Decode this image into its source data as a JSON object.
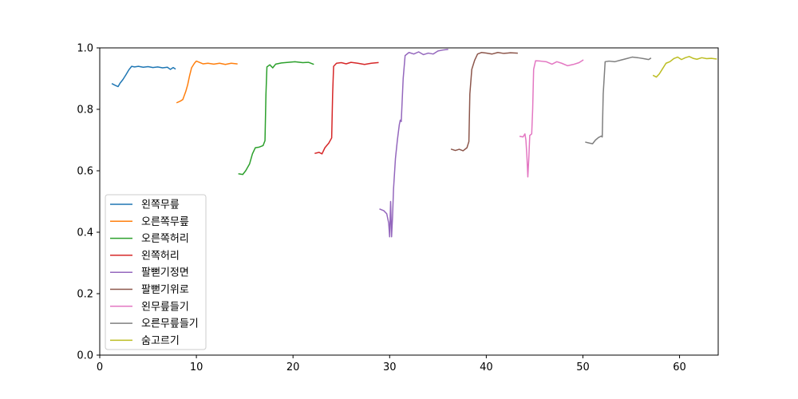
{
  "chart_data": {
    "type": "line",
    "title": "",
    "xlabel": "",
    "ylabel": "",
    "xlim": [
      0,
      64
    ],
    "ylim": [
      0.0,
      1.0
    ],
    "x_ticks": [
      0,
      10,
      20,
      30,
      40,
      50,
      60
    ],
    "x_tick_labels": [
      "0",
      "10",
      "20",
      "30",
      "40",
      "50",
      "60"
    ],
    "y_ticks": [
      0.0,
      0.2,
      0.4,
      0.6,
      0.8,
      1.0
    ],
    "y_tick_labels": [
      "0.0",
      "0.2",
      "0.4",
      "0.6",
      "0.8",
      "1.0"
    ],
    "grid": false,
    "legend_position": "lower-left",
    "series": [
      {
        "name": "왼쪽무릎",
        "color": "#1f77b4",
        "points": [
          [
            1.3,
            0.883
          ],
          [
            1.6,
            0.878
          ],
          [
            1.9,
            0.874
          ],
          [
            2.1,
            0.885
          ],
          [
            2.4,
            0.897
          ],
          [
            2.7,
            0.912
          ],
          [
            3.0,
            0.928
          ],
          [
            3.3,
            0.94
          ],
          [
            3.6,
            0.938
          ],
          [
            4.0,
            0.94
          ],
          [
            4.5,
            0.937
          ],
          [
            5.0,
            0.939
          ],
          [
            5.5,
            0.936
          ],
          [
            6.0,
            0.938
          ],
          [
            6.5,
            0.935
          ],
          [
            7.0,
            0.937
          ],
          [
            7.3,
            0.93
          ],
          [
            7.6,
            0.936
          ],
          [
            7.8,
            0.932
          ]
        ]
      },
      {
        "name": "오른쪽무릎",
        "color": "#ff7f0e",
        "points": [
          [
            8.0,
            0.822
          ],
          [
            8.3,
            0.826
          ],
          [
            8.6,
            0.832
          ],
          [
            8.9,
            0.858
          ],
          [
            9.1,
            0.88
          ],
          [
            9.3,
            0.91
          ],
          [
            9.5,
            0.935
          ],
          [
            9.8,
            0.95
          ],
          [
            10.0,
            0.957
          ],
          [
            10.3,
            0.953
          ],
          [
            10.7,
            0.948
          ],
          [
            11.2,
            0.95
          ],
          [
            11.8,
            0.947
          ],
          [
            12.4,
            0.95
          ],
          [
            13.0,
            0.946
          ],
          [
            13.6,
            0.95
          ],
          [
            14.2,
            0.948
          ]
        ]
      },
      {
        "name": "오른쪽허리",
        "color": "#2ca02c",
        "points": [
          [
            14.4,
            0.59
          ],
          [
            14.8,
            0.588
          ],
          [
            15.1,
            0.6
          ],
          [
            15.5,
            0.622
          ],
          [
            15.8,
            0.655
          ],
          [
            16.1,
            0.675
          ],
          [
            16.5,
            0.677
          ],
          [
            16.9,
            0.682
          ],
          [
            17.1,
            0.698
          ],
          [
            17.2,
            0.85
          ],
          [
            17.3,
            0.938
          ],
          [
            17.6,
            0.945
          ],
          [
            17.9,
            0.935
          ],
          [
            18.2,
            0.947
          ],
          [
            18.8,
            0.951
          ],
          [
            19.5,
            0.953
          ],
          [
            20.2,
            0.955
          ],
          [
            21.0,
            0.952
          ],
          [
            21.6,
            0.953
          ],
          [
            22.1,
            0.947
          ]
        ]
      },
      {
        "name": "왼쪽허리",
        "color": "#d62728",
        "points": [
          [
            22.3,
            0.657
          ],
          [
            22.7,
            0.66
          ],
          [
            23.0,
            0.655
          ],
          [
            23.3,
            0.675
          ],
          [
            23.7,
            0.69
          ],
          [
            24.0,
            0.707
          ],
          [
            24.1,
            0.85
          ],
          [
            24.2,
            0.94
          ],
          [
            24.5,
            0.95
          ],
          [
            25.0,
            0.952
          ],
          [
            25.5,
            0.948
          ],
          [
            26.0,
            0.953
          ],
          [
            26.7,
            0.95
          ],
          [
            27.4,
            0.946
          ],
          [
            28.1,
            0.95
          ],
          [
            28.8,
            0.952
          ]
        ]
      },
      {
        "name": "팔뻗기정면",
        "color": "#9467bd",
        "points": [
          [
            29.0,
            0.475
          ],
          [
            29.4,
            0.47
          ],
          [
            29.7,
            0.46
          ],
          [
            29.9,
            0.43
          ],
          [
            30.0,
            0.385
          ],
          [
            30.1,
            0.5
          ],
          [
            30.2,
            0.385
          ],
          [
            30.3,
            0.45
          ],
          [
            30.4,
            0.54
          ],
          [
            30.6,
            0.64
          ],
          [
            30.8,
            0.7
          ],
          [
            31.0,
            0.75
          ],
          [
            31.1,
            0.765
          ],
          [
            31.2,
            0.76
          ],
          [
            31.4,
            0.9
          ],
          [
            31.6,
            0.975
          ],
          [
            32.0,
            0.985
          ],
          [
            32.5,
            0.98
          ],
          [
            33.0,
            0.987
          ],
          [
            33.5,
            0.978
          ],
          [
            34.0,
            0.983
          ],
          [
            34.5,
            0.98
          ],
          [
            35.0,
            0.99
          ],
          [
            35.5,
            0.993
          ],
          [
            36.0,
            0.995
          ]
        ]
      },
      {
        "name": "팔뻗기위로",
        "color": "#8c564b",
        "points": [
          [
            36.4,
            0.67
          ],
          [
            36.8,
            0.666
          ],
          [
            37.2,
            0.67
          ],
          [
            37.6,
            0.665
          ],
          [
            38.0,
            0.675
          ],
          [
            38.2,
            0.695
          ],
          [
            38.3,
            0.85
          ],
          [
            38.5,
            0.93
          ],
          [
            38.8,
            0.96
          ],
          [
            39.1,
            0.98
          ],
          [
            39.5,
            0.985
          ],
          [
            40.0,
            0.983
          ],
          [
            40.6,
            0.98
          ],
          [
            41.2,
            0.985
          ],
          [
            41.8,
            0.982
          ],
          [
            42.5,
            0.984
          ],
          [
            43.2,
            0.983
          ]
        ]
      },
      {
        "name": "왼무릎들기",
        "color": "#e377c2",
        "points": [
          [
            43.5,
            0.712
          ],
          [
            43.8,
            0.71
          ],
          [
            44.0,
            0.72
          ],
          [
            44.1,
            0.7
          ],
          [
            44.2,
            0.65
          ],
          [
            44.3,
            0.58
          ],
          [
            44.4,
            0.64
          ],
          [
            44.5,
            0.715
          ],
          [
            44.7,
            0.72
          ],
          [
            44.8,
            0.8
          ],
          [
            44.9,
            0.93
          ],
          [
            45.1,
            0.958
          ],
          [
            45.6,
            0.957
          ],
          [
            46.2,
            0.955
          ],
          [
            46.8,
            0.947
          ],
          [
            47.3,
            0.955
          ],
          [
            47.8,
            0.95
          ],
          [
            48.4,
            0.942
          ],
          [
            49.0,
            0.946
          ],
          [
            49.6,
            0.952
          ],
          [
            50.0,
            0.96
          ]
        ]
      },
      {
        "name": "오른무릎들기",
        "color": "#7f7f7f",
        "points": [
          [
            50.3,
            0.693
          ],
          [
            50.7,
            0.69
          ],
          [
            51.0,
            0.688
          ],
          [
            51.3,
            0.7
          ],
          [
            51.6,
            0.708
          ],
          [
            51.9,
            0.713
          ],
          [
            52.0,
            0.71
          ],
          [
            52.1,
            0.85
          ],
          [
            52.3,
            0.955
          ],
          [
            52.7,
            0.957
          ],
          [
            53.3,
            0.955
          ],
          [
            53.9,
            0.96
          ],
          [
            54.5,
            0.965
          ],
          [
            55.1,
            0.97
          ],
          [
            55.7,
            0.968
          ],
          [
            56.3,
            0.965
          ],
          [
            56.8,
            0.962
          ],
          [
            57.0,
            0.966
          ]
        ]
      },
      {
        "name": "숨고르기",
        "color": "#bcbd22",
        "points": [
          [
            57.3,
            0.91
          ],
          [
            57.6,
            0.905
          ],
          [
            57.9,
            0.915
          ],
          [
            58.2,
            0.93
          ],
          [
            58.6,
            0.95
          ],
          [
            59.0,
            0.955
          ],
          [
            59.4,
            0.965
          ],
          [
            59.8,
            0.97
          ],
          [
            60.2,
            0.962
          ],
          [
            60.6,
            0.968
          ],
          [
            61.0,
            0.972
          ],
          [
            61.4,
            0.966
          ],
          [
            61.8,
            0.963
          ],
          [
            62.3,
            0.968
          ],
          [
            62.8,
            0.965
          ],
          [
            63.3,
            0.966
          ],
          [
            63.8,
            0.964
          ]
        ]
      }
    ]
  }
}
